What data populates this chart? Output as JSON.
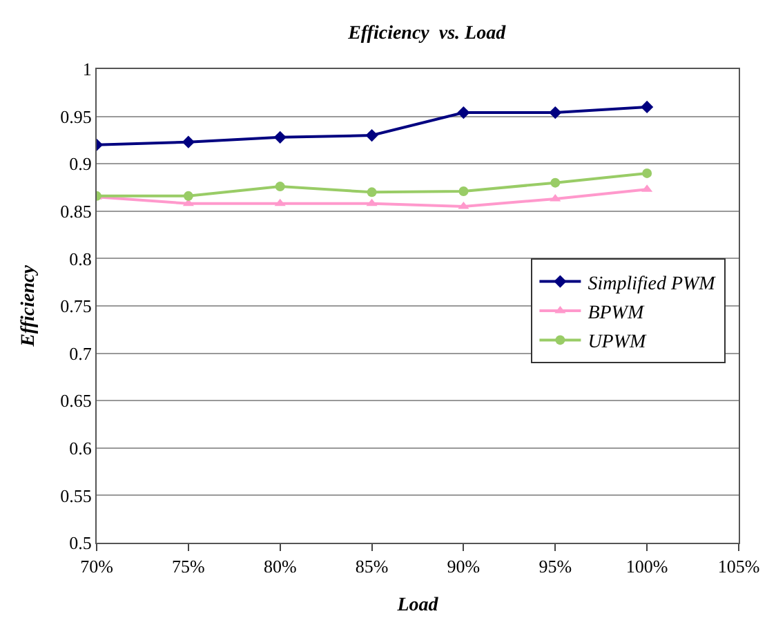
{
  "chart_data": {
    "type": "line",
    "title": "Efficiency  vs. Load",
    "xlabel": "Load",
    "ylabel": "Efficiency",
    "x": [
      70,
      75,
      80,
      85,
      90,
      95,
      100
    ],
    "series": [
      {
        "name": "Simplified PWM",
        "color": "#000080",
        "marker": "diamond",
        "values": [
          0.92,
          0.923,
          0.928,
          0.93,
          0.954,
          0.954,
          0.96
        ]
      },
      {
        "name": "BPWM",
        "color": "#ff99cc",
        "marker": "triangle",
        "values": [
          0.865,
          0.858,
          0.858,
          0.858,
          0.855,
          0.863,
          0.873
        ]
      },
      {
        "name": "UPWM",
        "color": "#99cc66",
        "marker": "circle",
        "values": [
          0.866,
          0.866,
          0.876,
          0.87,
          0.871,
          0.88,
          0.89
        ]
      }
    ],
    "xlim": [
      70,
      105
    ],
    "xticks": [
      {
        "value": 70,
        "label": "70%"
      },
      {
        "value": 75,
        "label": "75%"
      },
      {
        "value": 80,
        "label": "80%"
      },
      {
        "value": 85,
        "label": "85%"
      },
      {
        "value": 90,
        "label": "90%"
      },
      {
        "value": 95,
        "label": "95%"
      },
      {
        "value": 100,
        "label": "100%"
      },
      {
        "value": 105,
        "label": "105%"
      }
    ],
    "ylim": [
      0.5,
      1
    ],
    "yticks": [
      0.5,
      0.55,
      0.6,
      0.65,
      0.7,
      0.75,
      0.8,
      0.85,
      0.9,
      0.95,
      1
    ],
    "grid": "y",
    "legend": "right"
  }
}
